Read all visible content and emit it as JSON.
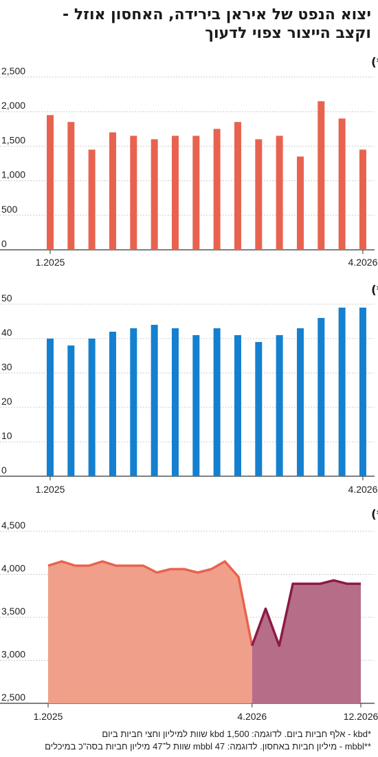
{
  "header": {
    "title_line1": "יצוא הנפט של איראן בירידה, האחסון אוזל -",
    "title_line2": "וקצב הייצור צפוי לדעוך"
  },
  "footnotes": {
    "line1": "*kbd - אלף חביות ביום. לדוגמה: 1,500 kbd שוות למיליון וחצי חביות ביום",
    "line2": "**mbbl - מיליון חביות באחסון. לדוגמה: 47 mbbl שוות ל־47 מיליון חביות בסה\"כ במיכלים"
  },
  "chart_data": [
    {
      "type": "bar",
      "title": "יצוא נפט (kbd*)",
      "color": "#e8634f",
      "categories": [
        "1.2025",
        "",
        "",
        "",
        "",
        "",
        "",
        "",
        "",
        "",
        "",
        "",
        "",
        "",
        "",
        "4.2026"
      ],
      "values": [
        1950,
        1850,
        1450,
        1700,
        1650,
        1600,
        1650,
        1650,
        1750,
        1850,
        1600,
        1650,
        1350,
        2150,
        1900,
        1450
      ],
      "ylim": [
        0,
        2500
      ],
      "yticks": [
        0,
        500,
        1000,
        1500,
        2000,
        2500
      ],
      "ytick_labels": [
        "0",
        "500",
        "1,000",
        "1,500",
        "2,000",
        "2,500"
      ],
      "xtick_labels": [
        {
          "index": 0,
          "label": "1.2025"
        },
        {
          "index": 15,
          "label": "4.2026"
        }
      ],
      "grid": true
    },
    {
      "type": "bar",
      "title": "מלאי (mbbl**)",
      "color": "#1580cf",
      "categories": [
        "1.2025",
        "",
        "",
        "",
        "",
        "",
        "",
        "",
        "",
        "",
        "",
        "",
        "",
        "",
        "",
        "4.2026"
      ],
      "values": [
        40,
        38,
        40,
        42,
        43,
        44,
        43,
        41,
        43,
        41,
        39,
        41,
        43,
        46,
        49,
        49
      ],
      "ylim": [
        0,
        50
      ],
      "yticks": [
        0,
        10,
        20,
        30,
        40,
        50
      ],
      "ytick_labels": [
        "0",
        "10",
        "20",
        "30",
        "40",
        "50"
      ],
      "xtick_labels": [
        {
          "index": 0,
          "label": "1.2025"
        },
        {
          "index": 15,
          "label": "4.2026"
        }
      ],
      "grid": true
    },
    {
      "type": "area",
      "title": "קצב ייצור צפוי (kdb*)",
      "x_range": [
        "1.2025",
        "12.2026"
      ],
      "ylim": [
        2500,
        4500
      ],
      "yticks": [
        2500,
        3000,
        3500,
        4000,
        4500
      ],
      "ytick_labels": [
        "2,500",
        "3,000",
        "3,500",
        "4,000",
        "4,500"
      ],
      "xtick_labels": [
        "1.2025",
        "4.2026",
        "12.2026"
      ],
      "grid": true,
      "series": [
        {
          "color": "#e8634f",
          "fill": "#f0a08a",
          "x": [
            "1.2025",
            "2.2025",
            "3.2025",
            "4.2025",
            "5.2025",
            "6.2025",
            "7.2025",
            "8.2025",
            "9.2025",
            "10.2025",
            "11.2025",
            "12.2025",
            "1.2026",
            "2.2026",
            "3.2026",
            "4.2026"
          ],
          "values": [
            4100,
            4150,
            4100,
            4100,
            4150,
            4100,
            4100,
            4100,
            4020,
            4060,
            4060,
            4020,
            4060,
            4150,
            3970,
            3170
          ]
        },
        {
          "color": "#8b1a46",
          "fill": "#b66d87",
          "x": [
            "4.2026",
            "5.2026",
            "6.2026",
            "7.2026",
            "8.2026",
            "9.2026",
            "10.2026",
            "11.2026",
            "12.2026"
          ],
          "values": [
            3170,
            3600,
            3170,
            3890,
            3890,
            3890,
            3930,
            3890,
            3890
          ]
        }
      ]
    }
  ]
}
